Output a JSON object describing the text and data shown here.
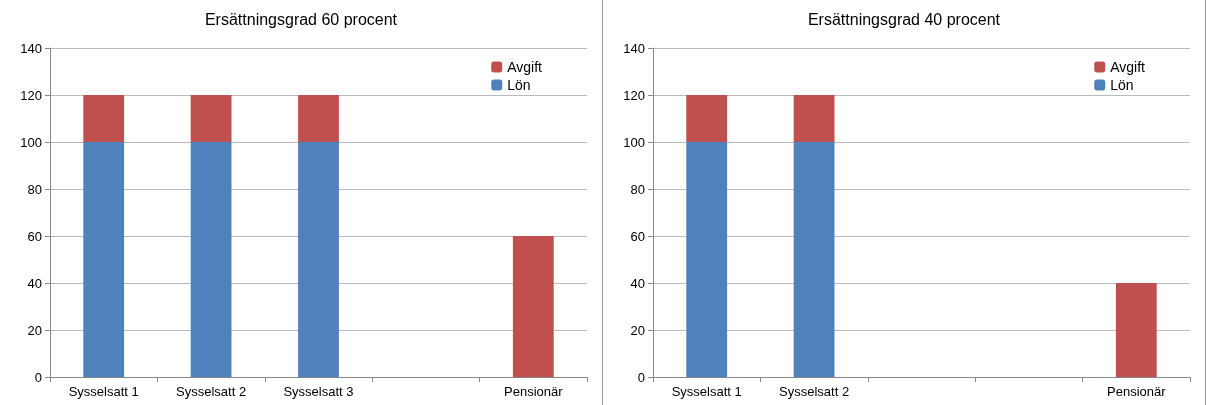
{
  "chart_data": [
    {
      "type": "bar",
      "title": "Ersättningsgrad 60 procent",
      "categories": [
        "Sysselsatt 1",
        "Sysselsatt 2",
        "Sysselsatt 3",
        null,
        "Pensionär"
      ],
      "stacked": true,
      "series": [
        {
          "name": "Lön",
          "color": "#4f81bd",
          "values": [
            100,
            100,
            100,
            null,
            null
          ]
        },
        {
          "name": "Avgift",
          "color": "#c0504d",
          "values": [
            20,
            20,
            20,
            null,
            60
          ]
        }
      ],
      "ylim": [
        0,
        140
      ],
      "yticks": [
        0,
        20,
        40,
        60,
        80,
        100,
        120,
        140
      ],
      "grid": "y",
      "legend": "top right"
    },
    {
      "type": "bar",
      "title": "Ersättningsgrad 40 procent",
      "categories": [
        "Sysselsatt 1",
        "Sysselsatt 2",
        null,
        null,
        "Pensionär"
      ],
      "stacked": true,
      "series": [
        {
          "name": "Lön",
          "color": "#4f81bd",
          "values": [
            100,
            100,
            null,
            null,
            null
          ]
        },
        {
          "name": "Avgift",
          "color": "#c0504d",
          "values": [
            20,
            20,
            null,
            null,
            40
          ]
        }
      ],
      "ylim": [
        0,
        140
      ],
      "yticks": [
        0,
        20,
        40,
        60,
        80,
        100,
        120,
        140
      ],
      "grid": "y",
      "legend": "top right"
    }
  ]
}
